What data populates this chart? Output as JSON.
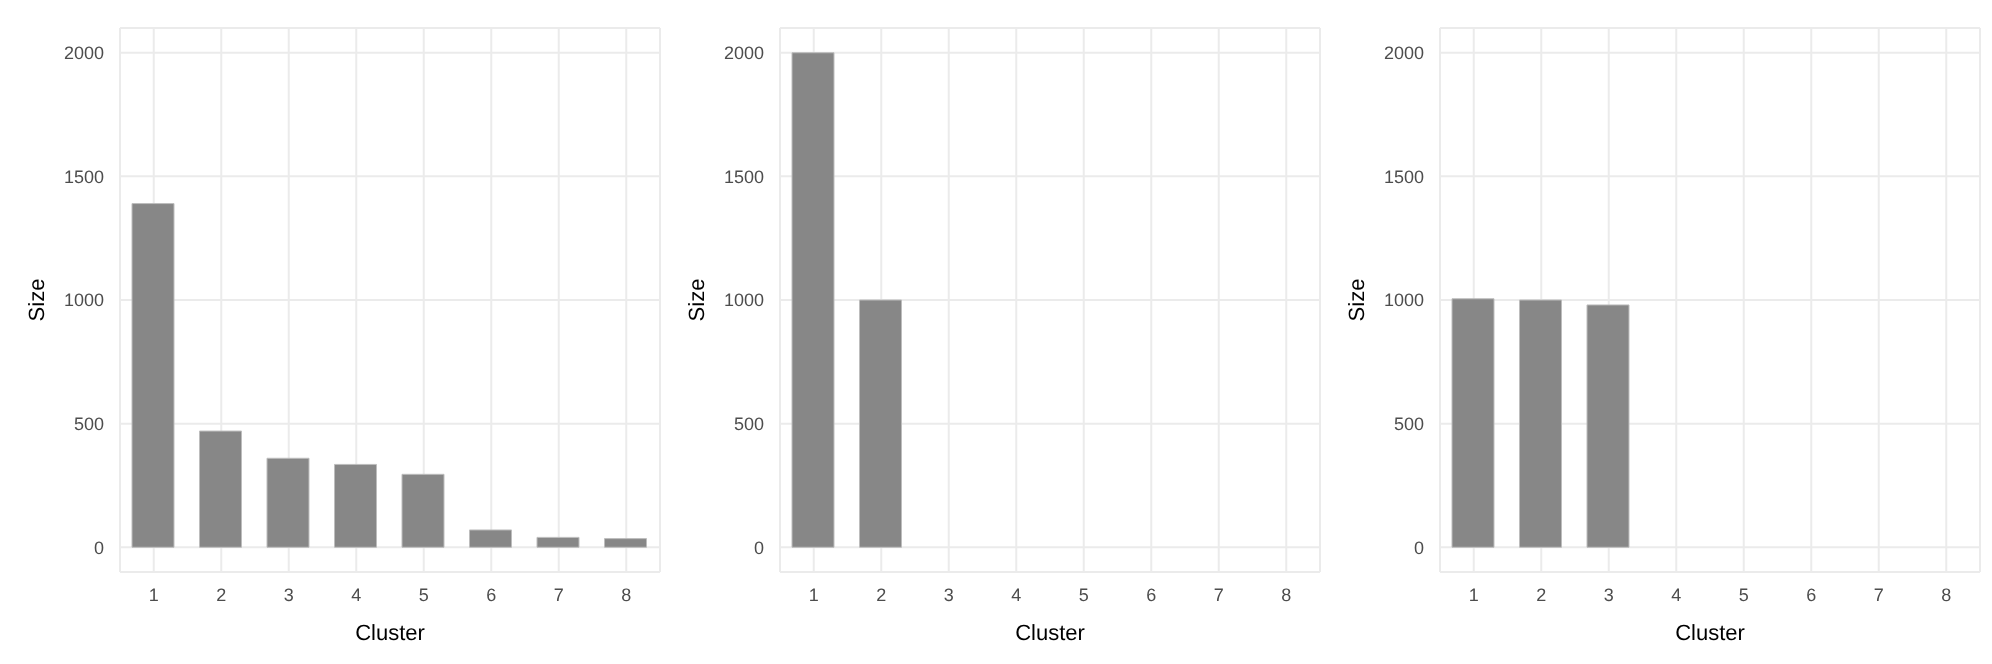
{
  "chart_data": [
    {
      "type": "bar",
      "xlabel": "Cluster",
      "ylabel": "Size",
      "categories": [
        "1",
        "2",
        "3",
        "4",
        "5",
        "6",
        "7",
        "8"
      ],
      "values": [
        1390,
        470,
        360,
        335,
        295,
        70,
        40,
        35
      ],
      "color": "#878787",
      "ylim": [
        -100,
        2100
      ],
      "yticks": [
        0,
        500,
        1000,
        1500,
        2000
      ],
      "grid": true
    },
    {
      "type": "bar",
      "xlabel": "Cluster",
      "ylabel": "Size",
      "categories": [
        "1",
        "2",
        "3",
        "4",
        "5",
        "6",
        "7",
        "8"
      ],
      "values": [
        2000,
        1000,
        0,
        0,
        0,
        0,
        0,
        0
      ],
      "color": "#878787",
      "ylim": [
        -100,
        2100
      ],
      "yticks": [
        0,
        500,
        1000,
        1500,
        2000
      ],
      "grid": true
    },
    {
      "type": "bar",
      "xlabel": "Cluster",
      "ylabel": "Size",
      "categories": [
        "1",
        "2",
        "3",
        "4",
        "5",
        "6",
        "7",
        "8"
      ],
      "values": [
        1005,
        1000,
        980,
        0,
        0,
        0,
        0,
        0
      ],
      "color": "#878787",
      "ylim": [
        -100,
        2100
      ],
      "yticks": [
        0,
        500,
        1000,
        1500,
        2000
      ],
      "grid": true
    }
  ]
}
